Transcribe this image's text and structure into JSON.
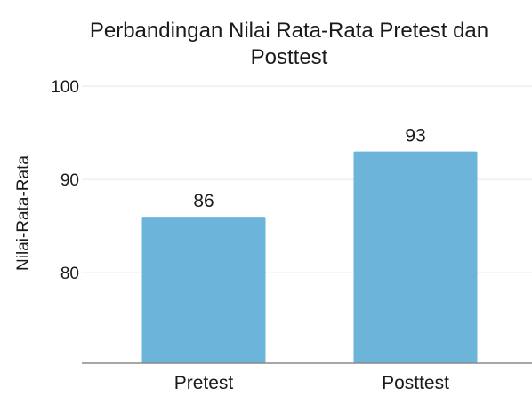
{
  "chart_data": {
    "type": "bar",
    "title_lines": [
      "Perbandingan Nilai Rata-Rata Pretest dan",
      "Posttest"
    ],
    "ylabel": "Nilai-Rata-Rata",
    "xlabel": "",
    "categories": [
      "Pretest",
      "Posttest"
    ],
    "values": [
      86,
      93
    ],
    "value_labels": [
      "86",
      "93"
    ],
    "yticks": [
      80,
      90,
      100
    ],
    "ytick_labels": [
      "80",
      "90",
      "100"
    ],
    "ylim": [
      70.3,
      100
    ],
    "grid": true,
    "legend": "none",
    "bar_color": "#6cb4d9"
  }
}
